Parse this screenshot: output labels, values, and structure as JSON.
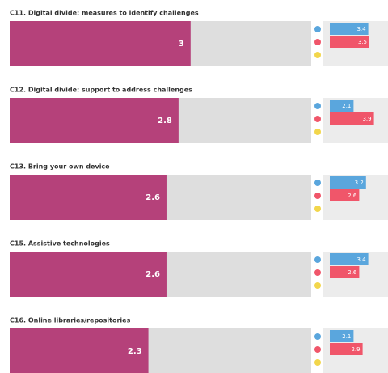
{
  "chart_data": {
    "type": "bar",
    "orientation": "horizontal",
    "xlim": [
      0,
      5
    ],
    "color": "#b5417a",
    "categories": [
      "C11. Digital divide: measures to identify challenges",
      "C12. Digital divide: support to address challenges",
      "C13. Bring your own device",
      "C15. Assistive technologies",
      "C16. Online libraries/repositories"
    ],
    "values": [
      3,
      2.8,
      2.6,
      2.6,
      2.3
    ],
    "series": [
      {
        "color": "#5aa6dd",
        "values": [
          3.4,
          2.1,
          3.2,
          3.4,
          2.1
        ]
      },
      {
        "color": "#f0566a",
        "values": [
          3.5,
          3.9,
          2.6,
          2.6,
          2.9
        ]
      }
    ]
  }
}
